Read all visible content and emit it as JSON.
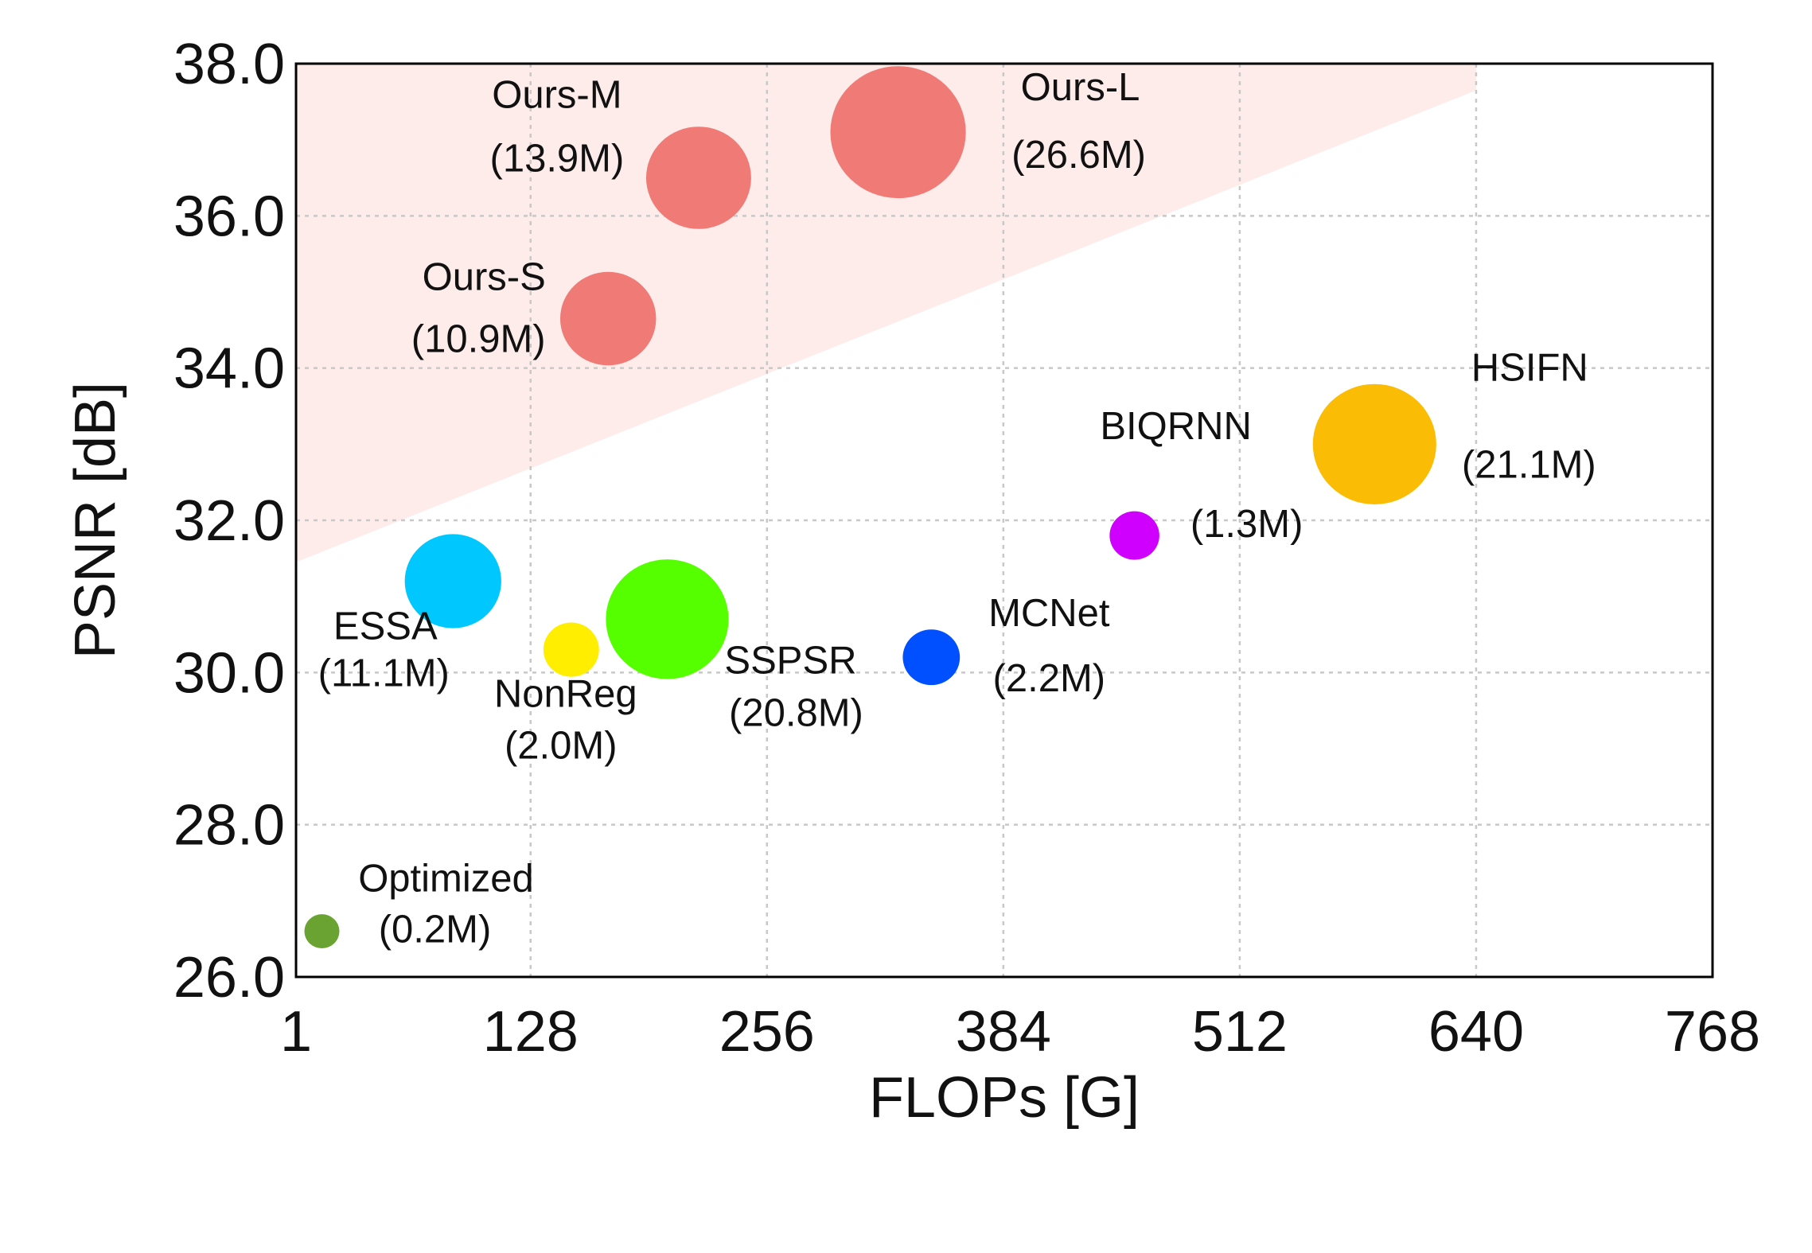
{
  "chart_data": {
    "type": "scatter",
    "subtype": "bubble",
    "xlabel": "FLOPs [G]",
    "ylabel": "PSNR [dB]",
    "xlim": [
      1,
      768
    ],
    "ylim": [
      26.0,
      38.0
    ],
    "xticks": [
      1,
      128,
      256,
      384,
      512,
      640,
      768
    ],
    "xtick_labels": [
      "1",
      "128",
      "256",
      "384",
      "512",
      "640",
      "768"
    ],
    "yticks": [
      26,
      28,
      30,
      32,
      34,
      36,
      38
    ],
    "ytick_labels": [
      "26.0",
      "28.0",
      "30.0",
      "32.0",
      "34.0",
      "36.0",
      "38.0"
    ],
    "grid": true,
    "shaded_region": {
      "color": "#fdecea",
      "polygon": [
        [
          1,
          31.45
        ],
        [
          1,
          38.0
        ],
        [
          640,
          38.0
        ],
        [
          640,
          37.65
        ]
      ]
    },
    "points": [
      {
        "name": "Ours-M",
        "params": "(13.9M)",
        "flops": 219,
        "psnr": 36.5,
        "params_m": 13.9,
        "color": "#f07b76"
      },
      {
        "name": "Ours-L",
        "params": "(26.6M)",
        "flops": 327,
        "psnr": 37.1,
        "params_m": 26.6,
        "color": "#f07b76"
      },
      {
        "name": "Ours-S",
        "params": "(10.9M)",
        "flops": 170,
        "psnr": 34.65,
        "params_m": 10.9,
        "color": "#f07b76"
      },
      {
        "name": "HSIFN",
        "params": "(21.1M)",
        "flops": 585,
        "psnr": 33.0,
        "params_m": 21.1,
        "color": "#fbbc05"
      },
      {
        "name": "BIQRNN",
        "params": "(1.3M)",
        "flops": 455,
        "psnr": 31.8,
        "params_m": 1.3,
        "color": "#d000ff"
      },
      {
        "name": "ESSA",
        "params": "(11.1M)",
        "flops": 86,
        "psnr": 31.2,
        "params_m": 11.1,
        "color": "#00c8ff"
      },
      {
        "name": "NonReg",
        "params": "(2.0M)",
        "flops": 150,
        "psnr": 30.3,
        "params_m": 2.0,
        "color": "#ffee00"
      },
      {
        "name": "SSPSR",
        "params": "(20.8M)",
        "flops": 202,
        "psnr": 30.7,
        "params_m": 20.8,
        "color": "#55ff00"
      },
      {
        "name": "MCNet",
        "params": "(2.2M)",
        "flops": 345,
        "psnr": 30.2,
        "params_m": 2.2,
        "color": "#0050ff"
      },
      {
        "name": "Optimized",
        "params": "(0.2M)",
        "flops": 15,
        "psnr": 26.6,
        "params_m": 0.2,
        "color": "#6aa332"
      }
    ]
  }
}
